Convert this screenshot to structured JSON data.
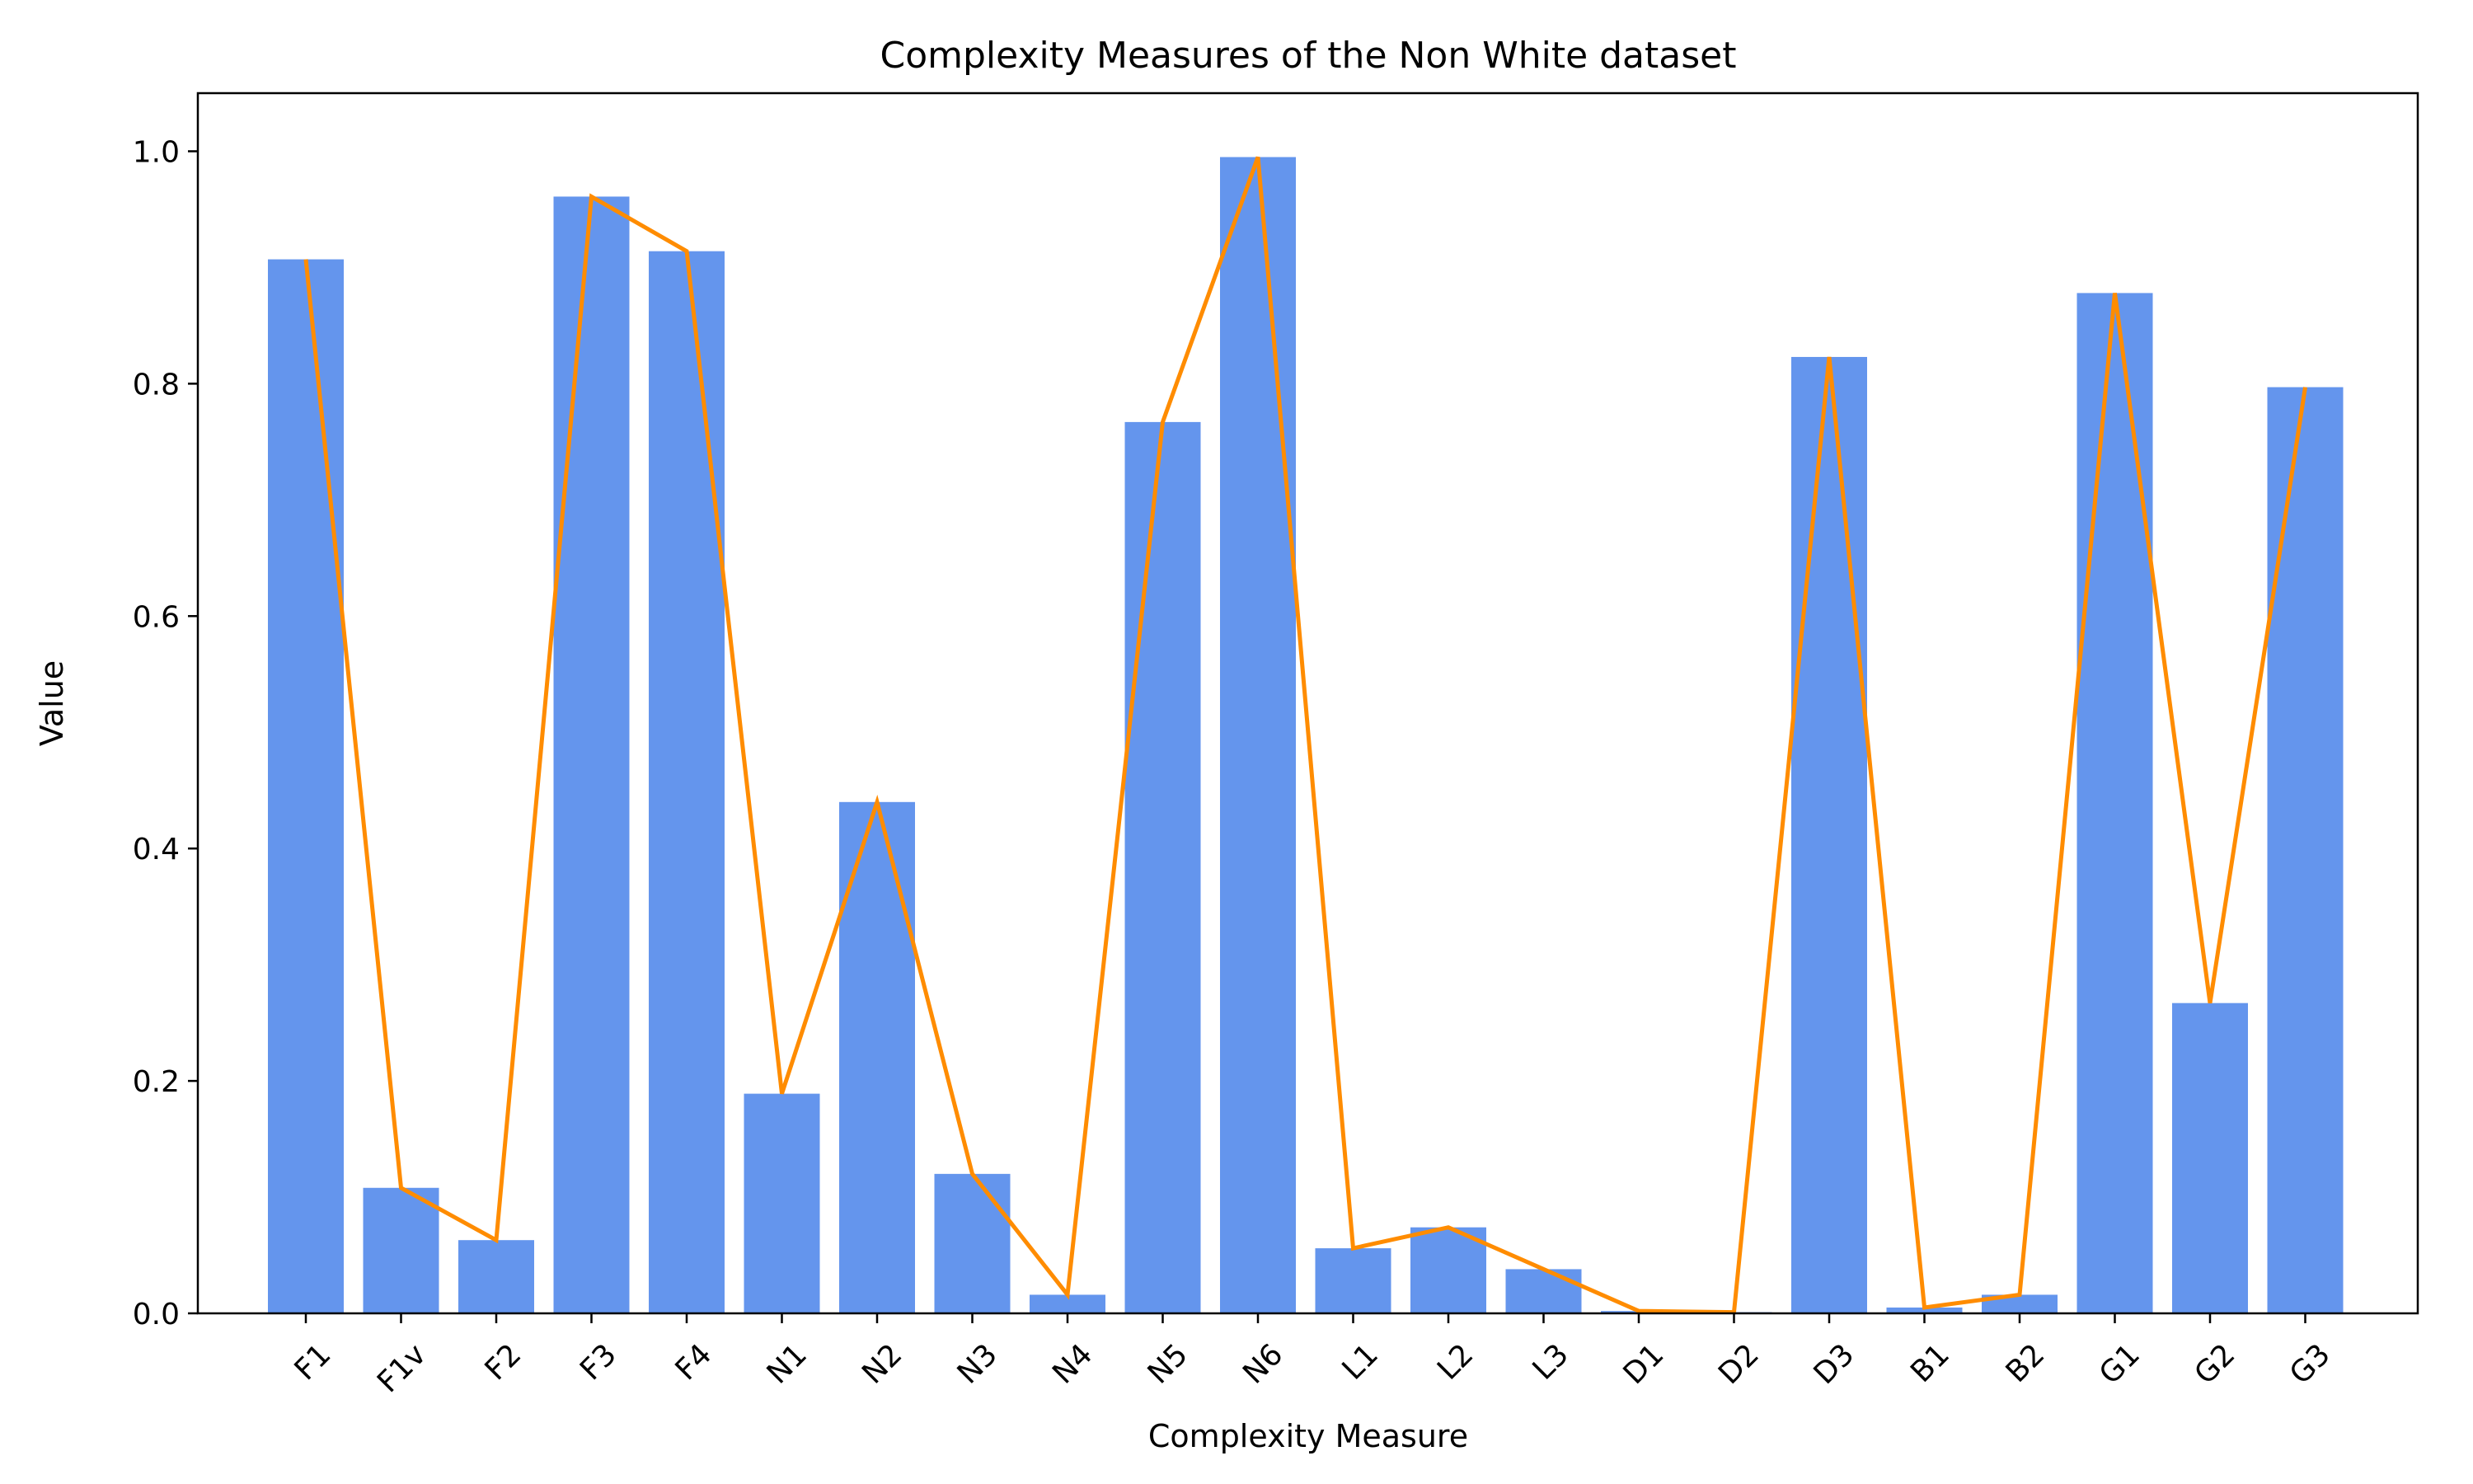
{
  "chart_data": {
    "type": "bar",
    "title": "Complexity Measures of the Non White dataset",
    "xlabel": "Complexity Measure",
    "ylabel": "Value",
    "ylim": [
      0,
      1.05
    ],
    "yticks": [
      "0.0",
      "0.2",
      "0.4",
      "0.6",
      "0.8",
      "1.0"
    ],
    "categories": [
      "F1",
      "F1v",
      "F2",
      "F3",
      "F4",
      "N1",
      "N2",
      "N3",
      "N4",
      "N5",
      "N6",
      "L1",
      "L2",
      "L3",
      "D1",
      "D2",
      "D3",
      "B1",
      "B2",
      "G1",
      "G2",
      "G3"
    ],
    "values": [
      0.907,
      0.108,
      0.063,
      0.961,
      0.914,
      0.189,
      0.44,
      0.12,
      0.016,
      0.767,
      0.995,
      0.056,
      0.074,
      0.038,
      0.002,
      0.001,
      0.823,
      0.005,
      0.016,
      0.878,
      0.267,
      0.797
    ],
    "line_overlay": true,
    "grid": false,
    "colors": {
      "bar": "#6495ed",
      "line": "#ff8c00"
    }
  }
}
